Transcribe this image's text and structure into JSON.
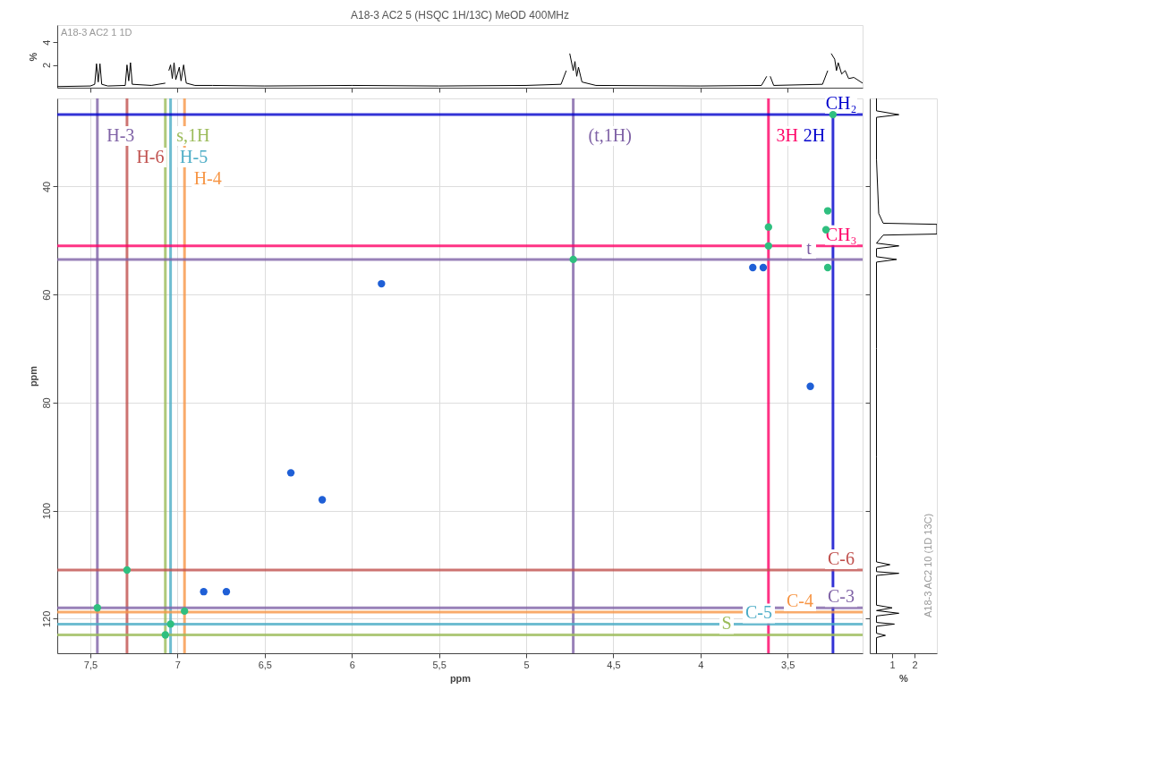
{
  "chart_data": [
    {
      "type": "line",
      "title": "A18-3 AC2 5 (HSQC 1H/13C) MeOD 400MHz",
      "ylabel": "%",
      "tick_labels": "y",
      "grid": false,
      "xlim": [
        7.69,
        3.07
      ],
      "xticks": [
        {
          "value": 7.5,
          "label": null
        },
        {
          "value": 7,
          "label": null
        },
        {
          "value": 6.5,
          "label": null
        },
        {
          "value": 6,
          "label": null
        },
        {
          "value": 5.5,
          "label": null
        },
        {
          "value": 5,
          "label": null
        },
        {
          "value": 4.5,
          "label": null
        },
        {
          "value": 4,
          "label": null
        },
        {
          "value": 3.5,
          "label": null
        }
      ],
      "ylim": [
        0,
        5.5
      ],
      "yticks": [
        2,
        4
      ],
      "annotations": [
        "A18-3 AC2 1 1D"
      ],
      "series": [
        {
          "color": "#000000",
          "x": [
            7.69,
            7.5,
            7.475,
            7.465,
            7.455,
            7.445,
            7.435,
            7.4,
            7.3,
            7.29,
            7.28,
            7.27,
            7.26,
            7.15,
            7.07,
            7.06,
            7.05,
            7.04,
            7.03,
            7.02,
            7.01,
            6.99,
            6.98,
            6.965,
            6.95,
            6.9,
            6.8,
            6.5,
            6.0,
            5.5,
            5.0,
            4.8,
            4.77,
            4.76,
            4.75,
            4.73,
            4.72,
            4.71,
            4.7,
            4.68,
            4.6,
            4.0,
            3.65,
            3.62,
            3.61,
            3.6,
            3.58,
            3.3,
            3.27,
            3.26,
            3.25,
            3.23,
            3.22,
            3.21,
            3.19,
            3.17,
            3.15,
            3.12,
            3.07
          ],
          "values": [
            0.1,
            0.15,
            0.3,
            2.1,
            0.5,
            2.1,
            0.3,
            0.15,
            0.2,
            2.0,
            0.6,
            2.2,
            0.3,
            0.2,
            0.4,
            null,
            1.5,
            2.0,
            0.8,
            2.2,
            0.7,
            1.8,
            0.6,
            2.0,
            0.4,
            0.2,
            0.2,
            0.15,
            0.2,
            0.15,
            0.2,
            0.3,
            1.5,
            null,
            3.0,
            1.5,
            2.3,
            1.0,
            1.8,
            0.5,
            0.2,
            0.15,
            0.2,
            1.0,
            null,
            1.0,
            0.2,
            0.3,
            1.5,
            null,
            3.0,
            2.5,
            1.5,
            2.2,
            1.2,
            1.5,
            0.8,
            0.9,
            0.4
          ]
        }
      ]
    },
    {
      "type": "scatter",
      "xlabel": "ppm",
      "ylabel": "ppm",
      "grid": true,
      "marker": "circle",
      "xlim": [
        7.69,
        3.07
      ],
      "xticks": [
        {
          "value": 7.5,
          "label": "7,5"
        },
        7,
        {
          "value": 6.5,
          "label": "6,5"
        },
        6,
        {
          "value": 5.5,
          "label": "5,5"
        },
        5,
        {
          "value": 4.5,
          "label": "4,5"
        },
        4,
        {
          "value": 3.5,
          "label": "3,5"
        }
      ],
      "ylim": [
        126.4,
        23.7
      ],
      "yticks": [
        40,
        60,
        80,
        100,
        120
      ],
      "series": [
        {
          "color": "#2fbf7f",
          "x": [
            7.46,
            7.29,
            7.07,
            7.04,
            6.96,
            4.73,
            3.61,
            3.61,
            3.28,
            3.27,
            3.24,
            3.27
          ],
          "values": [
            118,
            111,
            123,
            121,
            118.6,
            53.5,
            51,
            47.5,
            48,
            44.5,
            26.7,
            55
          ]
        },
        {
          "color": "#1f5fd6",
          "x": [
            6.85,
            6.72,
            5.83,
            6.17,
            6.35,
            3.37,
            3.7,
            3.64
          ],
          "values": [
            115,
            115,
            58,
            98,
            93,
            77,
            55,
            55
          ]
        }
      ],
      "ref_lines": [
        {
          "axis": "x",
          "value": 7.46,
          "label": "H-3",
          "color": "#7f62a6"
        },
        {
          "axis": "x",
          "value": 7.29,
          "label": "H-6",
          "color": "#c0504d"
        },
        {
          "axis": "x",
          "value": 7.07,
          "label": "s,1H",
          "color": "#9bbb59"
        },
        {
          "axis": "x",
          "value": 7.04,
          "label": "H-5",
          "color": "#4bacc6"
        },
        {
          "axis": "x",
          "value": 6.96,
          "label": "H-4",
          "color": "#f79646"
        },
        {
          "axis": "x",
          "value": 4.73,
          "label": "(t,1H)",
          "color": "#7f62a6"
        },
        {
          "axis": "x",
          "value": 3.61,
          "label": "3H",
          "color": "#ff0066"
        },
        {
          "axis": "x",
          "value": 3.24,
          "label": "2H",
          "color": "#0000cc"
        },
        {
          "axis": "y",
          "value": 26.7,
          "label": "CH₂",
          "color": "#0000cc"
        },
        {
          "axis": "y",
          "value": 51,
          "label": "CH₃",
          "color": "#ff0066"
        },
        {
          "axis": "y",
          "value": 53.5,
          "label": "t",
          "color": "#7f62a6"
        },
        {
          "axis": "y",
          "value": 111,
          "label": "C-6",
          "color": "#c0504d"
        },
        {
          "axis": "y",
          "value": 118,
          "label": "C-3",
          "color": "#7f62a6"
        },
        {
          "axis": "y",
          "value": 118.8,
          "label": "C-4",
          "color": "#f79646"
        },
        {
          "axis": "y",
          "value": 121,
          "label": "C-5",
          "color": "#4bacc6"
        },
        {
          "axis": "y",
          "value": 123,
          "label": "S",
          "color": "#9bbb59"
        }
      ]
    },
    {
      "type": "line",
      "orientation": "horizontal",
      "xlabel": "%",
      "tick_labels": "x",
      "grid": false,
      "xlim": [
        0,
        3
      ],
      "xticks": [
        1,
        2
      ],
      "ylim": [
        126.4,
        23.7
      ],
      "yticks": [
        {
          "value": 40,
          "label": null
        },
        {
          "value": 60,
          "label": null
        },
        {
          "value": 80,
          "label": null
        },
        {
          "value": 100,
          "label": null
        },
        {
          "value": 120,
          "label": null
        }
      ],
      "annotations": [
        "A18-3 AC2 10 (1D 13C)"
      ],
      "series": [
        {
          "color": "#000000",
          "x": [
            23.7,
            26,
            26.7,
            27.2,
            35,
            45,
            46.8,
            47,
            48.8,
            49,
            50.5,
            51,
            51.5,
            53,
            53.5,
            54,
            70,
            90,
            109.5,
            110,
            110.5,
            111.3,
            111.6,
            112,
            117.5,
            118,
            118.5,
            119,
            119.5,
            120.7,
            121,
            121.4,
            122.7,
            123.1,
            123.5,
            126.4
          ],
          "values": [
            0.3,
            0.3,
            1.3,
            0.3,
            0.3,
            0.4,
            0.6,
            3,
            3,
            0.6,
            0.3,
            1.3,
            0.3,
            0.3,
            1.2,
            0.3,
            0.3,
            0.3,
            0.3,
            0.9,
            0.3,
            0.3,
            1.3,
            0.3,
            0.3,
            1.0,
            0.3,
            1.3,
            0.3,
            0.3,
            1.1,
            0.3,
            0.3,
            0.7,
            0.3,
            0.3
          ]
        }
      ]
    }
  ]
}
